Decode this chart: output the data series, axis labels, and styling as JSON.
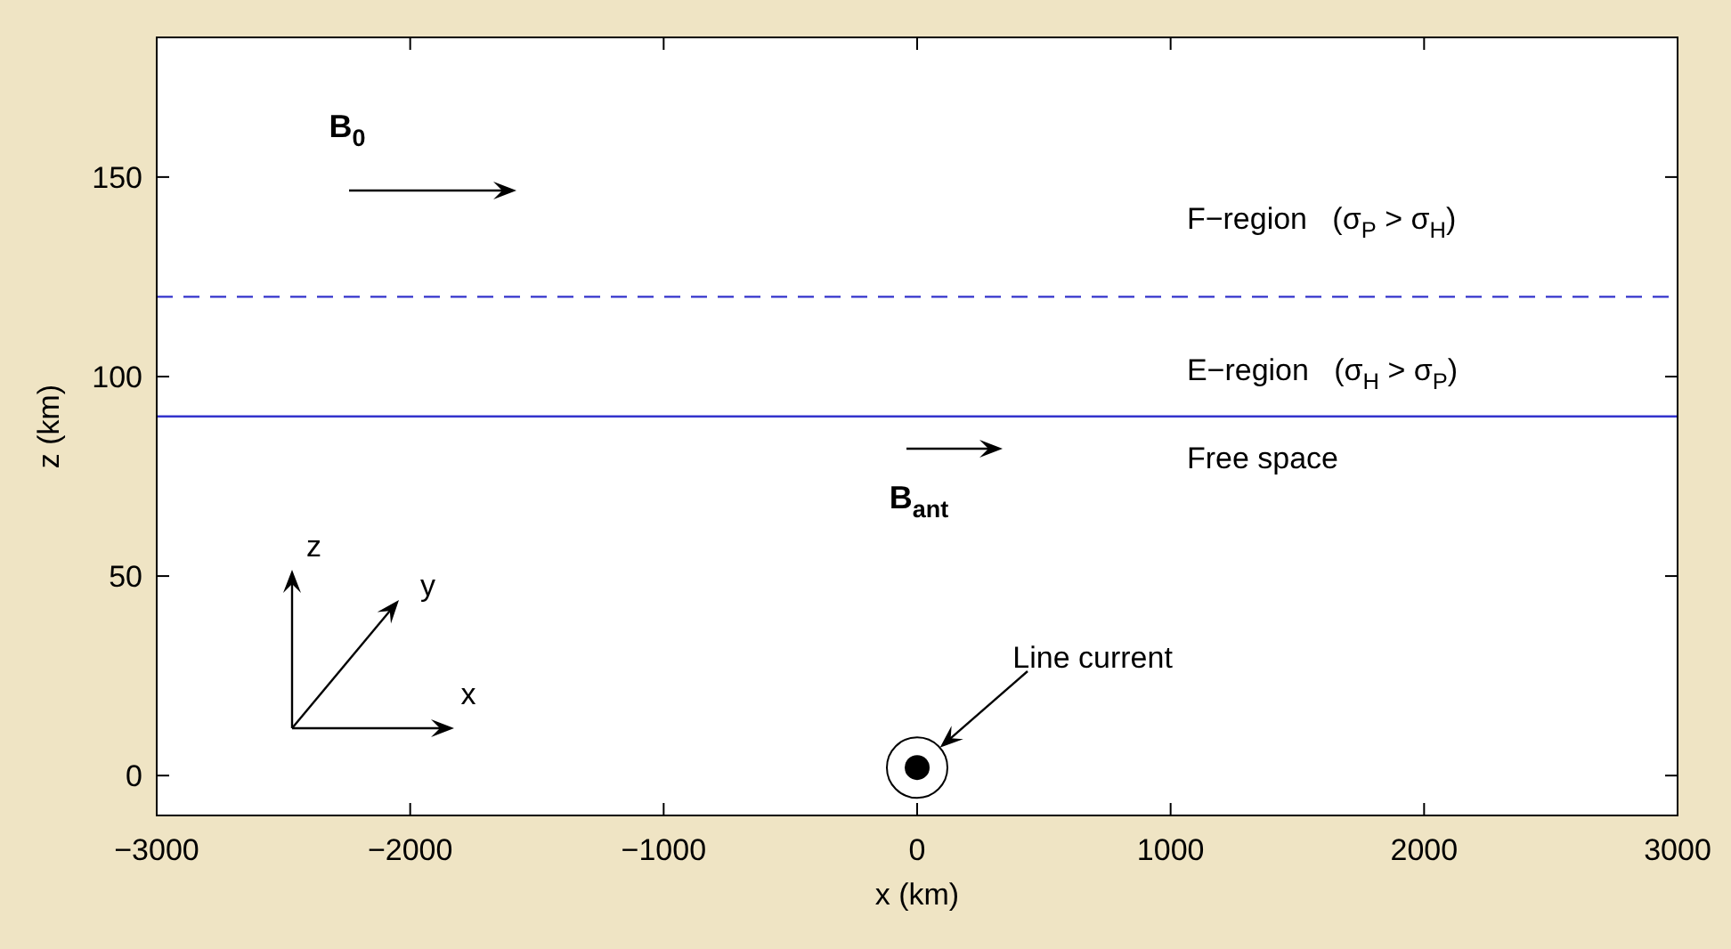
{
  "chart_data": {
    "type": "scatter",
    "xlabel": "x (km)",
    "ylabel": "z (km)",
    "x": [
      0
    ],
    "values": [
      2
    ],
    "color": "#000000",
    "marker": "circle",
    "xlim": [
      -3000,
      3000
    ],
    "ylim": [
      -10,
      185
    ],
    "xticks": [
      {
        "value": -3000,
        "label": "−3000"
      },
      {
        "value": -2000,
        "label": "−2000"
      },
      {
        "value": -1000,
        "label": "−1000"
      },
      0,
      1000,
      2000,
      3000
    ],
    "yticks": [
      0,
      50,
      100,
      150
    ],
    "grid": false,
    "ref_lines": [
      {
        "axis": "y",
        "value": 120,
        "color": "#3333cc",
        "line_style": "dashed"
      },
      {
        "axis": "y",
        "value": 90,
        "color": "#3333cc",
        "line_style": "solid"
      }
    ],
    "annotations": [
      "F−region   (σ$_{P}$ > σ$_{H}$)",
      "E−region   (σ$_{H}$ > σ$_{P}$)",
      "Free space",
      {
        "text": "Line current",
        "x": 90,
        "y": 7
      },
      "B$_{0}$",
      "B$_{ant}$",
      "z",
      "y",
      "x"
    ]
  }
}
